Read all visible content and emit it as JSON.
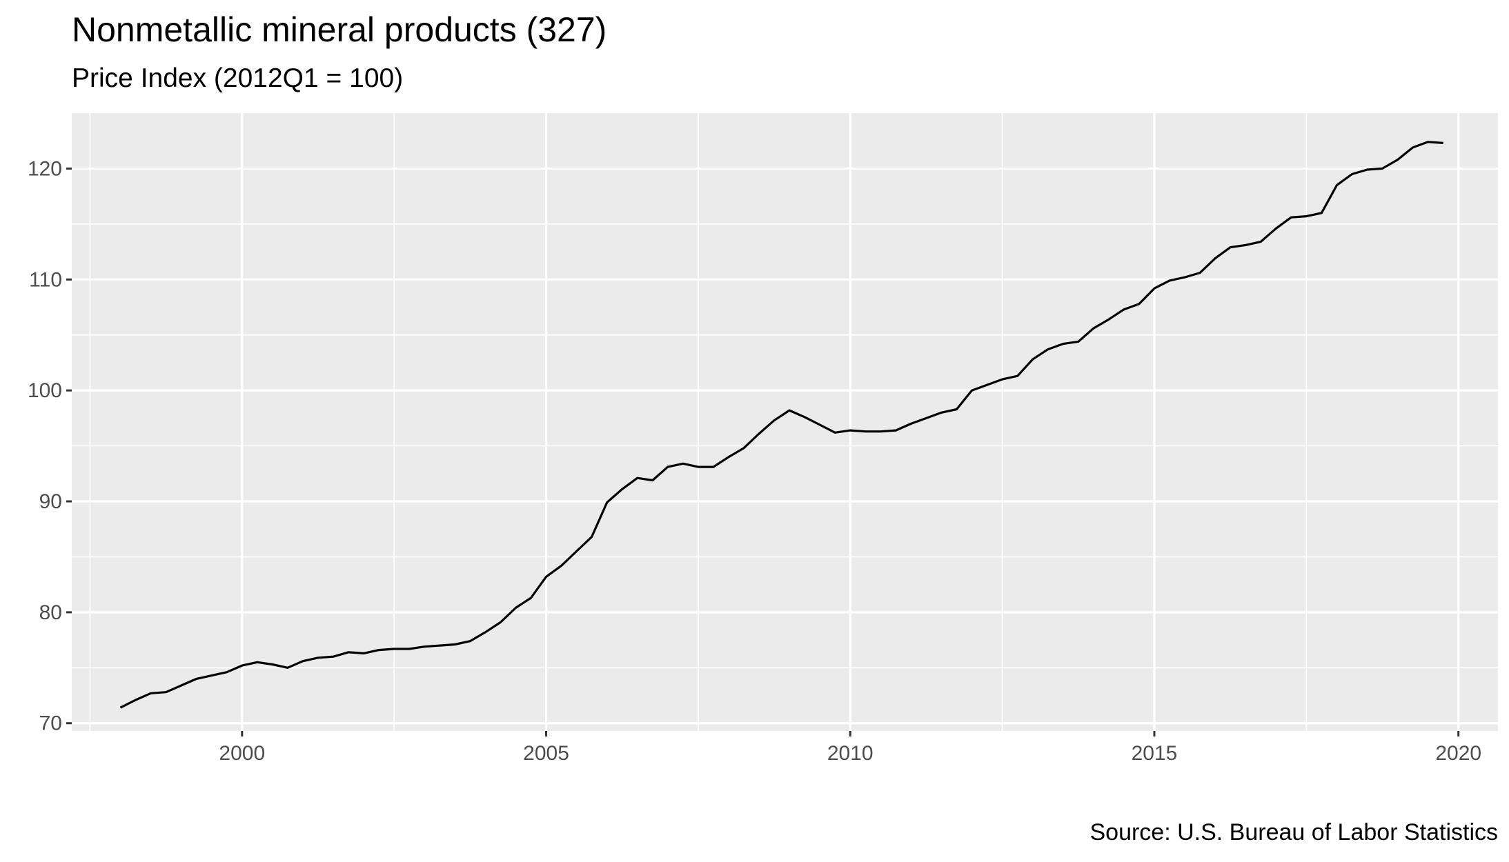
{
  "title": "Nonmetallic mineral products (327)",
  "subtitle": "Price Index (2012Q1 = 100)",
  "caption": "Source: U.S. Bureau of Labor Statistics",
  "colors": {
    "panel": "#ebebeb",
    "grid": "#ffffff",
    "line": "#000000",
    "tick_text": "#4d4d4d"
  },
  "chart_data": {
    "type": "line",
    "title": "Nonmetallic mineral products (327)",
    "subtitle": "Price Index (2012Q1 = 100)",
    "xlabel": "",
    "ylabel": "",
    "xlim": [
      1997.2,
      2020.65
    ],
    "ylim": [
      69.3,
      125
    ],
    "x_ticks": [
      2000,
      2005,
      2010,
      2015,
      2020
    ],
    "y_ticks": [
      70,
      80,
      90,
      100,
      110,
      120
    ],
    "grid": true,
    "legend": "none",
    "series": [
      {
        "x": [
          1998.0,
          1998.25,
          1998.5,
          1998.75,
          1999.0,
          1999.25,
          1999.5,
          1999.75,
          2000.0,
          2000.25,
          2000.5,
          2000.75,
          2001.0,
          2001.25,
          2001.5,
          2001.75,
          2002.0,
          2002.25,
          2002.5,
          2002.75,
          2003.0,
          2003.25,
          2003.5,
          2003.75,
          2004.0,
          2004.25,
          2004.5,
          2004.75,
          2005.0,
          2005.25,
          2005.5,
          2005.75,
          2006.0,
          2006.25,
          2006.5,
          2006.75,
          2007.0,
          2007.25,
          2007.5,
          2007.75,
          2008.0,
          2008.25,
          2008.5,
          2008.75,
          2009.0,
          2009.25,
          2009.5,
          2009.75,
          2010.0,
          2010.25,
          2010.5,
          2010.75,
          2011.0,
          2011.25,
          2011.5,
          2011.75,
          2012.0,
          2012.25,
          2012.5,
          2012.75,
          2013.0,
          2013.25,
          2013.5,
          2013.75,
          2014.0,
          2014.25,
          2014.5,
          2014.75,
          2015.0,
          2015.25,
          2015.5,
          2015.75,
          2016.0,
          2016.25,
          2016.5,
          2016.75,
          2017.0,
          2017.25,
          2017.5,
          2017.75,
          2018.0,
          2018.25,
          2018.5,
          2018.75,
          2019.0,
          2019.25,
          2019.5,
          2019.75
        ],
        "y": [
          71.4,
          72.1,
          72.7,
          72.8,
          73.4,
          74.0,
          74.3,
          74.6,
          75.2,
          75.5,
          75.3,
          75.0,
          75.6,
          75.9,
          76.0,
          76.4,
          76.3,
          76.6,
          76.7,
          76.7,
          76.9,
          77.0,
          77.1,
          77.4,
          78.2,
          79.1,
          80.4,
          81.3,
          83.2,
          84.2,
          85.5,
          86.8,
          89.9,
          91.1,
          92.1,
          91.9,
          93.1,
          93.4,
          93.1,
          93.1,
          94.0,
          94.8,
          96.1,
          97.3,
          98.2,
          97.6,
          96.9,
          96.2,
          96.4,
          96.3,
          96.3,
          96.4,
          97.0,
          97.5,
          98.0,
          98.3,
          100.0,
          100.5,
          101.0,
          101.3,
          102.8,
          103.7,
          104.2,
          104.4,
          105.6,
          106.4,
          107.3,
          107.8,
          109.2,
          109.9,
          110.2,
          110.6,
          111.9,
          112.9,
          113.1,
          113.4,
          114.6,
          115.6,
          115.7,
          116.0,
          118.5,
          119.5,
          119.9,
          120.0,
          120.8,
          121.9,
          122.4,
          122.3
        ]
      }
    ]
  }
}
